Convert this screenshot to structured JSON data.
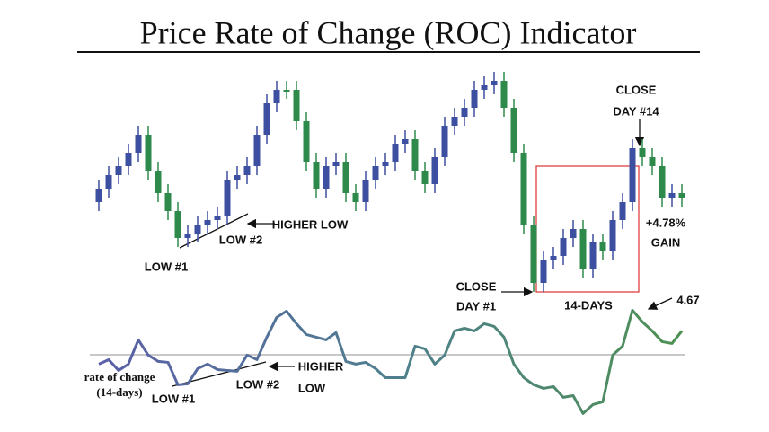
{
  "title": "Price Rate of Change (ROC) Indicator",
  "annotations": [
    "LOW #1",
    "LOW #2",
    "HIGHER LOW",
    "CLOSE",
    "DAY #14",
    "+4.78%",
    "GAIN",
    "CLOSE",
    "DAY #1",
    "14-DAYS",
    "4.67",
    "rate of change",
    "(14-days)",
    "LOW #1",
    "LOW #2",
    "HIGHER",
    "LOW"
  ],
  "chart_data": [
    {
      "type": "candlestick",
      "ylim": [
        60,
        320
      ],
      "up_color": "#3d4fa0",
      "down_color": "#2d8a4a",
      "open": [
        175,
        190,
        205,
        215,
        230,
        250,
        210,
        185,
        165,
        135,
        140,
        150,
        155,
        160,
        200,
        205,
        215,
        250,
        285,
        300,
        300,
        265,
        220,
        190,
        215,
        220,
        185,
        175,
        200,
        215,
        220,
        240,
        245,
        210,
        195,
        225,
        260,
        270,
        280,
        300,
        305,
        310,
        280,
        230,
        150,
        85,
        110,
        115,
        135,
        145,
        100,
        130,
        120,
        155,
        175,
        235,
        225,
        215,
        180,
        185
      ],
      "close": [
        190,
        205,
        215,
        230,
        250,
        210,
        185,
        165,
        135,
        140,
        150,
        155,
        160,
        200,
        205,
        215,
        250,
        285,
        300,
        300,
        265,
        220,
        190,
        215,
        220,
        185,
        175,
        200,
        215,
        220,
        240,
        245,
        210,
        195,
        225,
        260,
        270,
        280,
        300,
        305,
        310,
        280,
        230,
        150,
        85,
        110,
        115,
        135,
        145,
        100,
        130,
        120,
        155,
        175,
        235,
        225,
        215,
        180,
        185,
        180
      ],
      "high": [
        200,
        215,
        225,
        240,
        260,
        260,
        220,
        195,
        175,
        150,
        160,
        165,
        170,
        210,
        215,
        225,
        260,
        295,
        310,
        310,
        310,
        275,
        230,
        225,
        230,
        230,
        195,
        210,
        225,
        230,
        250,
        255,
        255,
        220,
        235,
        270,
        280,
        290,
        310,
        315,
        320,
        320,
        290,
        240,
        160,
        120,
        125,
        145,
        155,
        155,
        140,
        140,
        165,
        185,
        245,
        245,
        235,
        225,
        195,
        195
      ],
      "low": [
        165,
        180,
        195,
        205,
        220,
        200,
        175,
        155,
        125,
        125,
        130,
        140,
        145,
        150,
        190,
        195,
        205,
        240,
        275,
        290,
        255,
        210,
        180,
        180,
        205,
        175,
        165,
        165,
        190,
        205,
        210,
        230,
        200,
        185,
        185,
        215,
        250,
        260,
        270,
        290,
        295,
        270,
        220,
        140,
        75,
        75,
        100,
        105,
        125,
        90,
        90,
        110,
        110,
        145,
        165,
        215,
        205,
        170,
        170,
        170
      ]
    },
    {
      "type": "line",
      "ylim": [
        -6.5,
        5.55
      ],
      "series": [
        {
          "values": [
            -0.93,
            -0.47,
            -1.59,
            -0.93,
            1.59,
            0,
            -0.65,
            -0.75,
            -3.08,
            -2.99,
            -1.4,
            -0.93,
            -1.5,
            -1.59,
            -1.68,
            0,
            -0.47,
            1.87,
            3.93,
            4.58,
            3.27,
            2.15,
            1.87,
            1.59,
            2.34,
            -0.65,
            -0.93,
            -0.75,
            -1.4,
            -2.34,
            -2.34,
            -2.34,
            0.93,
            0.65,
            -0.93,
            0,
            2.52,
            2.8,
            2.52,
            3.27,
            2.99,
            1.87,
            -0.93,
            -2.34,
            -3.08,
            -3.46,
            -3.27,
            -4.39,
            -4.21,
            -6.07,
            -5.14,
            -4.86,
            0,
            0.93,
            4.67,
            3.46,
            2.52,
            1.4,
            1.21,
            2.52
          ]
        }
      ]
    }
  ]
}
